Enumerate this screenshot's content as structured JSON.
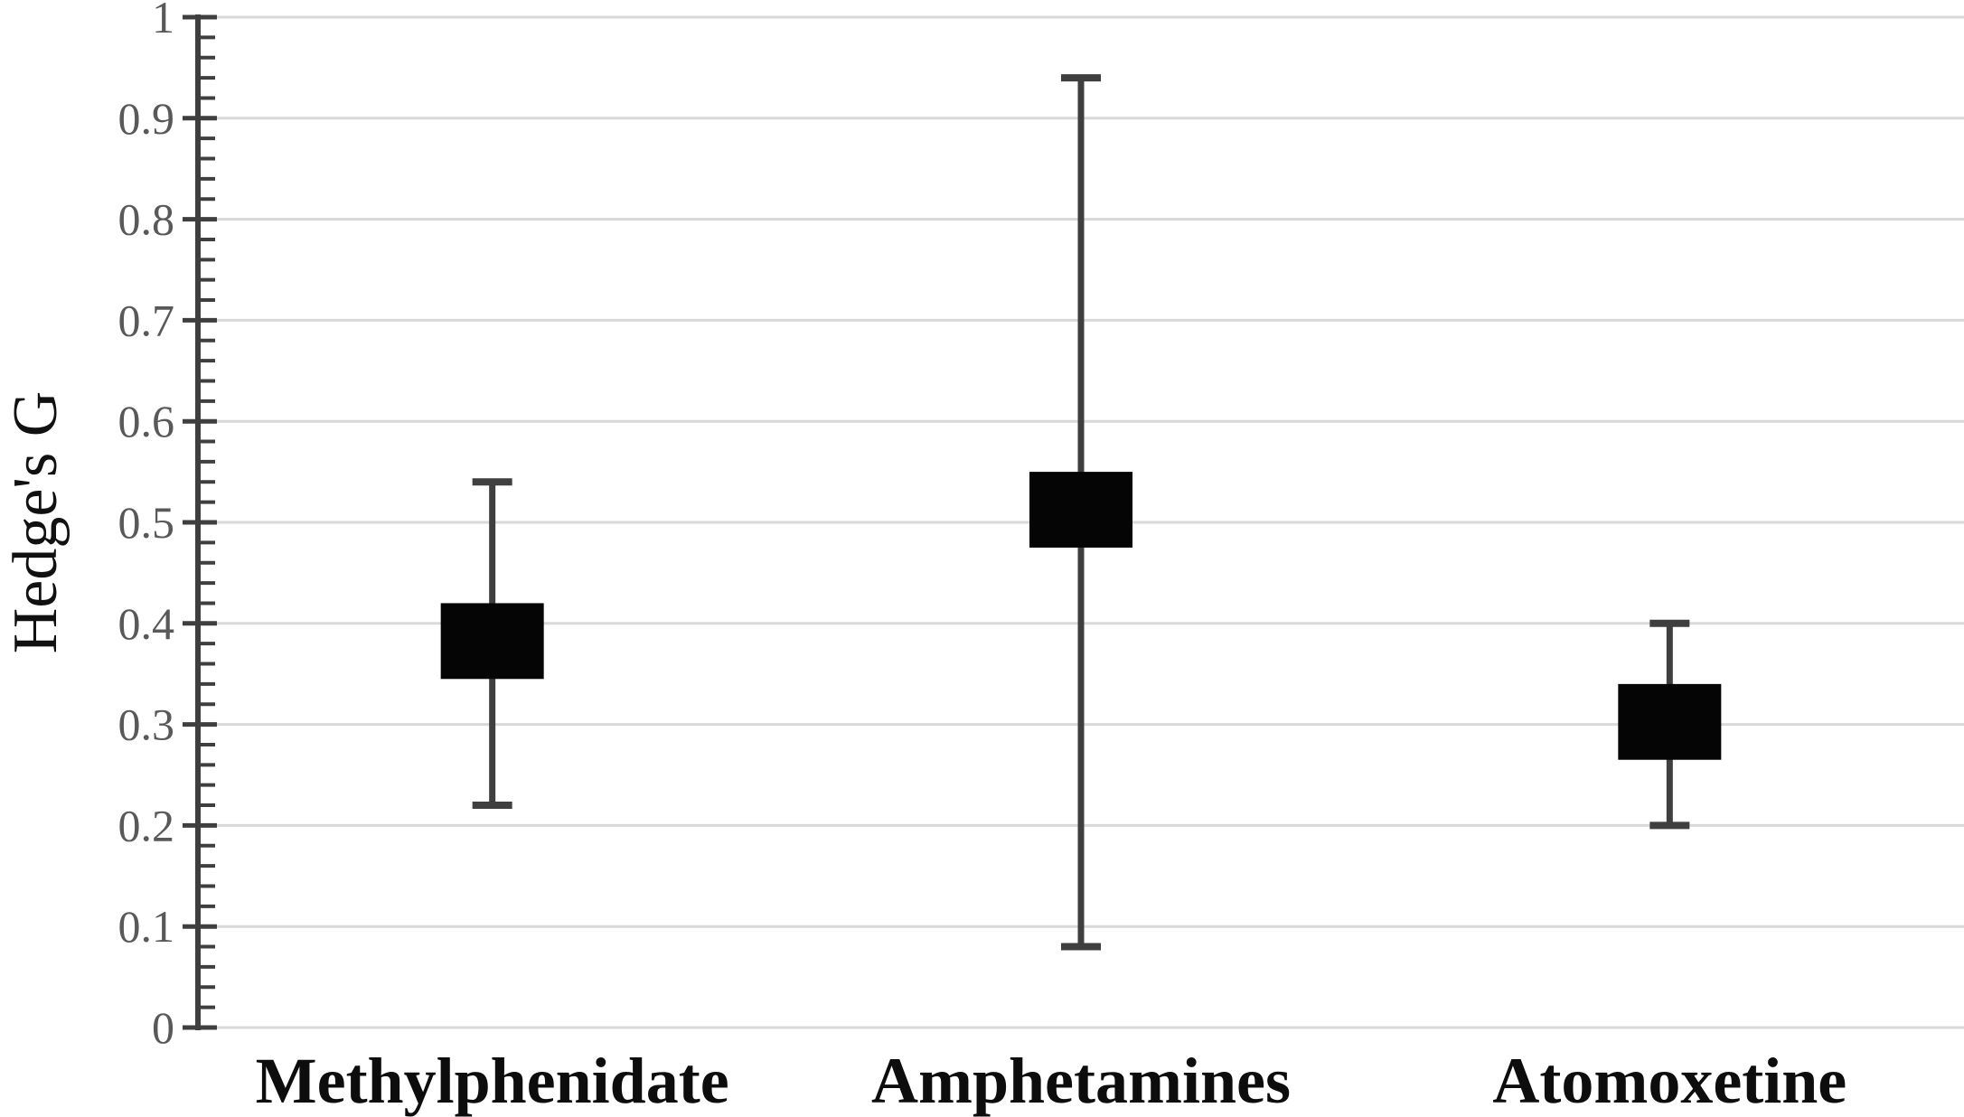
{
  "figure": {
    "background": "#ffffff"
  },
  "chart_data": {
    "type": "box-whisker",
    "title": "",
    "xlabel": "",
    "ylabel": "Hedge's G",
    "ylim": [
      0,
      1
    ],
    "y_major_tick_step": 0.1,
    "y_minor_tick_step": 0.02,
    "y_tick_labels": [
      "0",
      "0.1",
      "0.2",
      "0.3",
      "0.4",
      "0.5",
      "0.6",
      "0.7",
      "0.8",
      "0.9",
      "1"
    ],
    "grid": "horizontal light gray lines at every 0.1",
    "legend": false,
    "categories": [
      "Methylphenidate",
      "Amphetamines",
      "Atomoxetine"
    ],
    "series": [
      {
        "category": "Methylphenidate",
        "box_low": 0.345,
        "box_high": 0.42,
        "whisker_low": 0.22,
        "whisker_high": 0.54,
        "center_estimate": 0.38
      },
      {
        "category": "Amphetamines",
        "box_low": 0.475,
        "box_high": 0.55,
        "whisker_low": 0.08,
        "whisker_high": 0.94,
        "center_estimate": 0.51
      },
      {
        "category": "Atomoxetine",
        "box_low": 0.265,
        "box_high": 0.34,
        "whisker_low": 0.2,
        "whisker_high": 0.4,
        "center_estimate": 0.3
      }
    ],
    "colors": {
      "box_fill": "#050505",
      "whisker": "#3f3f3f",
      "axis": "#3f3f3f",
      "gridline": "#d9d9d9",
      "tick_label": "#595959",
      "category_label": "#0d0d0d",
      "axis_title": "#111111"
    }
  }
}
